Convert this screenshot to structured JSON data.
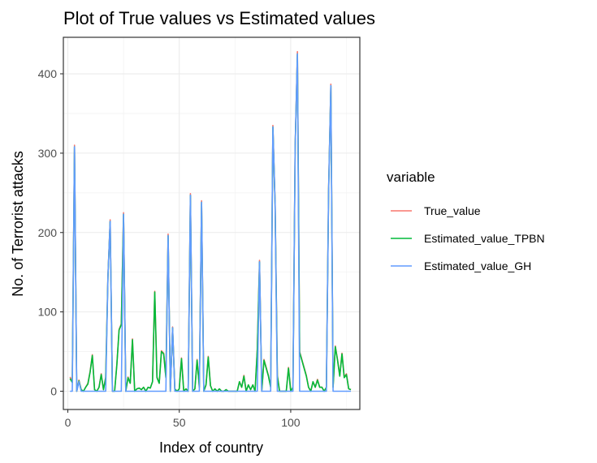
{
  "chart_data": {
    "type": "line",
    "title": "Plot of True values vs Estimated values",
    "xlabel": "Index of country",
    "ylabel": "No. of Terrorist attacks",
    "xlim": [
      -2,
      131
    ],
    "ylim": [
      -23,
      446
    ],
    "x_ticks": [
      0,
      50,
      100
    ],
    "y_ticks": [
      0,
      100,
      200,
      300,
      400
    ],
    "grid": true,
    "legend": {
      "title": "variable",
      "position": "right",
      "entries": [
        "True_value",
        "Estimated_value_TPBN",
        "Estimated_value_GH"
      ]
    },
    "x": [
      1,
      2,
      3,
      4,
      5,
      6,
      7,
      8,
      9,
      10,
      11,
      12,
      13,
      14,
      15,
      16,
      17,
      18,
      19,
      20,
      21,
      22,
      23,
      24,
      25,
      26,
      27,
      28,
      29,
      30,
      31,
      32,
      33,
      34,
      35,
      36,
      37,
      38,
      39,
      40,
      41,
      42,
      43,
      44,
      45,
      46,
      47,
      48,
      49,
      50,
      51,
      52,
      53,
      54,
      55,
      56,
      57,
      58,
      59,
      60,
      61,
      62,
      63,
      64,
      65,
      66,
      67,
      68,
      69,
      70,
      71,
      72,
      73,
      74,
      75,
      76,
      77,
      78,
      79,
      80,
      81,
      82,
      83,
      84,
      85,
      86,
      87,
      88,
      89,
      90,
      91,
      92,
      93,
      94,
      95,
      96,
      97,
      98,
      99,
      100,
      101,
      102,
      103,
      104,
      105,
      106,
      107,
      108,
      109,
      110,
      111,
      112,
      113,
      114,
      115,
      116,
      117,
      118,
      119,
      120,
      121,
      122,
      123,
      124,
      125,
      126,
      127
    ],
    "series": [
      {
        "name": "True_value",
        "color": "#F8766D",
        "values": [
          18,
          12,
          310,
          0,
          14,
          2,
          0,
          5,
          10,
          25,
          46,
          2,
          0,
          5,
          22,
          2,
          18,
          145,
          216,
          0,
          0,
          34,
          78,
          85,
          225,
          0,
          18,
          10,
          66,
          0,
          3,
          4,
          2,
          5,
          0,
          5,
          4,
          12,
          126,
          18,
          10,
          51,
          48,
          18,
          198,
          0,
          81,
          3,
          0,
          3,
          42,
          0,
          3,
          0,
          249,
          0,
          3,
          40,
          5,
          240,
          0,
          8,
          44,
          7,
          0,
          3,
          0,
          3,
          0,
          0,
          2,
          0,
          0,
          0,
          0,
          0,
          12,
          5,
          20,
          0,
          8,
          2,
          8,
          0,
          53,
          165,
          0,
          40,
          30,
          20,
          5,
          335,
          236,
          20,
          0,
          0,
          0,
          0,
          30,
          0,
          5,
          310,
          428,
          50,
          40,
          30,
          20,
          5,
          0,
          12,
          5,
          15,
          5,
          5,
          0,
          5,
          255,
          387,
          5,
          57,
          40,
          20,
          48,
          18,
          22,
          3,
          2
        ]
      },
      {
        "name": "Estimated_value_TPBN",
        "color": "#00BA38",
        "values": [
          16,
          11,
          308,
          0,
          13,
          2,
          0,
          5,
          9,
          24,
          45,
          2,
          0,
          5,
          21,
          2,
          17,
          144,
          214,
          0,
          0,
          33,
          77,
          84,
          223,
          0,
          17,
          10,
          65,
          0,
          3,
          4,
          2,
          5,
          0,
          5,
          4,
          12,
          125,
          17,
          10,
          50,
          47,
          17,
          196,
          0,
          80,
          3,
          0,
          3,
          41,
          0,
          3,
          0,
          247,
          0,
          3,
          39,
          5,
          238,
          0,
          8,
          43,
          7,
          0,
          3,
          0,
          3,
          0,
          0,
          2,
          0,
          0,
          0,
          0,
          0,
          12,
          5,
          19,
          0,
          8,
          2,
          8,
          0,
          52,
          163,
          0,
          39,
          29,
          19,
          5,
          333,
          235,
          19,
          0,
          0,
          0,
          0,
          29,
          0,
          5,
          308,
          425,
          49,
          39,
          29,
          19,
          5,
          0,
          12,
          5,
          14,
          5,
          5,
          0,
          5,
          253,
          385,
          5,
          56,
          39,
          19,
          47,
          17,
          21,
          3,
          2
        ]
      },
      {
        "name": "Estimated_value_GH",
        "color": "#619CFF",
        "values": [
          0,
          0,
          308,
          0,
          12,
          0,
          0,
          0,
          0,
          0,
          0,
          0,
          0,
          0,
          0,
          0,
          0,
          144,
          214,
          0,
          0,
          0,
          0,
          0,
          223,
          0,
          0,
          0,
          0,
          0,
          0,
          0,
          0,
          0,
          0,
          0,
          0,
          0,
          0,
          0,
          0,
          0,
          0,
          0,
          196,
          0,
          80,
          0,
          0,
          0,
          0,
          0,
          0,
          0,
          247,
          0,
          0,
          0,
          0,
          238,
          0,
          0,
          0,
          0,
          0,
          0,
          0,
          0,
          0,
          0,
          0,
          0,
          0,
          0,
          0,
          0,
          0,
          0,
          0,
          0,
          0,
          0,
          0,
          0,
          0,
          163,
          0,
          0,
          0,
          0,
          0,
          333,
          235,
          0,
          0,
          0,
          0,
          0,
          0,
          0,
          0,
          308,
          425,
          0,
          0,
          0,
          0,
          0,
          0,
          0,
          0,
          0,
          0,
          0,
          0,
          0,
          253,
          385,
          0,
          0,
          0,
          0,
          0,
          0,
          0,
          0,
          0
        ]
      }
    ]
  }
}
